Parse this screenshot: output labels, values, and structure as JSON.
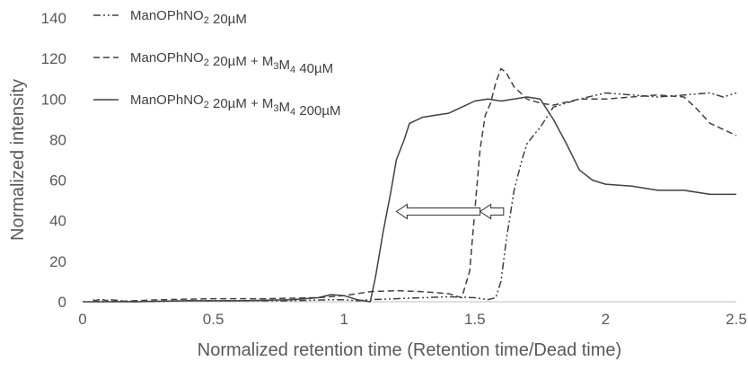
{
  "chart_data": {
    "type": "line",
    "title": "",
    "xlabel": "Normalized retention time (Retention time/Dead time)",
    "ylabel": "Normalized intensity",
    "xlim": [
      0,
      2.5
    ],
    "ylim": [
      0,
      140
    ],
    "xticks": [
      0,
      0.5,
      1,
      1.5,
      2,
      2.5
    ],
    "xtick_labels": [
      "0",
      "0.5",
      "1",
      "1.5",
      "2",
      "2.5"
    ],
    "yticks": [
      0,
      20,
      40,
      60,
      80,
      100,
      120,
      140
    ],
    "ytick_labels": [
      "0",
      "20",
      "40",
      "60",
      "80",
      "100",
      "120",
      "140"
    ],
    "grid": false,
    "legend_position": "top-left",
    "series": [
      {
        "name": "ManOPhNO2 20µM",
        "style": "dash-dot-dot",
        "color": "#404040",
        "legend_parts": [
          [
            "ManOPhNO",
            ""
          ],
          [
            "2",
            "sub"
          ],
          [
            " 20µM",
            ""
          ]
        ],
        "x": [
          0.04,
          0.06,
          0.08,
          0.1,
          0.2,
          0.4,
          0.6,
          0.8,
          0.95,
          1.0,
          1.05,
          1.1,
          1.2,
          1.3,
          1.4,
          1.5,
          1.55,
          1.58,
          1.6,
          1.62,
          1.65,
          1.68,
          1.7,
          1.73,
          1.75,
          1.78,
          1.8,
          1.85,
          1.9,
          2.0,
          2.1,
          2.2,
          2.3,
          2.4,
          2.45,
          2.5
        ],
        "y": [
          0,
          1,
          0,
          1,
          0,
          0.5,
          0.5,
          0.5,
          1,
          1,
          0.5,
          1,
          1.5,
          2,
          2.5,
          2,
          1,
          2,
          10,
          30,
          55,
          70,
          78,
          83,
          86,
          92,
          96,
          98,
          100,
          103,
          102,
          101,
          102,
          103,
          101,
          103
        ]
      },
      {
        "name": "ManOPhNO2 20µM + M3M4 40µM",
        "style": "dashed",
        "color": "#404040",
        "legend_parts": [
          [
            "ManOPhNO",
            ""
          ],
          [
            "2",
            "sub"
          ],
          [
            " 20µM + M",
            ""
          ],
          [
            "3",
            "sub"
          ],
          [
            "M",
            ""
          ],
          [
            "4",
            "sub"
          ],
          [
            " 40µM",
            ""
          ]
        ],
        "x": [
          0.04,
          0.06,
          0.08,
          0.1,
          0.2,
          0.3,
          0.5,
          0.7,
          0.9,
          1.0,
          1.05,
          1.1,
          1.2,
          1.3,
          1.4,
          1.45,
          1.48,
          1.5,
          1.52,
          1.54,
          1.56,
          1.58,
          1.6,
          1.62,
          1.65,
          1.7,
          1.75,
          1.8,
          1.9,
          2.0,
          2.1,
          2.2,
          2.3,
          2.35,
          2.4,
          2.5
        ],
        "y": [
          1,
          0,
          1,
          0,
          0.5,
          1,
          1.5,
          1.5,
          2,
          3,
          4,
          5,
          5.5,
          5,
          4,
          2,
          15,
          45,
          75,
          92,
          98,
          108,
          115,
          113,
          106,
          100,
          98,
          97,
          100,
          100,
          101,
          102,
          101,
          95,
          88,
          82
        ]
      },
      {
        "name": "ManOPhNO2 20µM + M3M4 200µM",
        "style": "solid",
        "color": "#404040",
        "legend_parts": [
          [
            "ManOPhNO",
            ""
          ],
          [
            "2",
            "sub"
          ],
          [
            " 20µM + M",
            ""
          ],
          [
            "3",
            "sub"
          ],
          [
            "M",
            ""
          ],
          [
            "4",
            "sub"
          ],
          [
            " 200µM",
            ""
          ]
        ],
        "x": [
          0.0,
          0.1,
          0.2,
          0.4,
          0.6,
          0.8,
          0.9,
          0.95,
          1.0,
          1.05,
          1.1,
          1.12,
          1.15,
          1.18,
          1.2,
          1.23,
          1.25,
          1.3,
          1.35,
          1.4,
          1.45,
          1.5,
          1.55,
          1.6,
          1.65,
          1.7,
          1.75,
          1.8,
          1.85,
          1.9,
          1.95,
          2.0,
          2.1,
          2.2,
          2.3,
          2.4,
          2.5
        ],
        "y": [
          0,
          0,
          0,
          0.5,
          0.5,
          1,
          2,
          3.5,
          3,
          1,
          0,
          12,
          35,
          55,
          70,
          80,
          88,
          91,
          92,
          93,
          96,
          99,
          100,
          99,
          100,
          101,
          100,
          90,
          78,
          65,
          60,
          58,
          57,
          55,
          55,
          53,
          53
        ]
      }
    ],
    "annotations": [
      {
        "type": "arrow",
        "from_x": 1.52,
        "to_x": 1.2,
        "y": 44.5
      },
      {
        "type": "arrow",
        "from_x": 1.61,
        "to_x": 1.52,
        "y": 44.5
      }
    ]
  }
}
